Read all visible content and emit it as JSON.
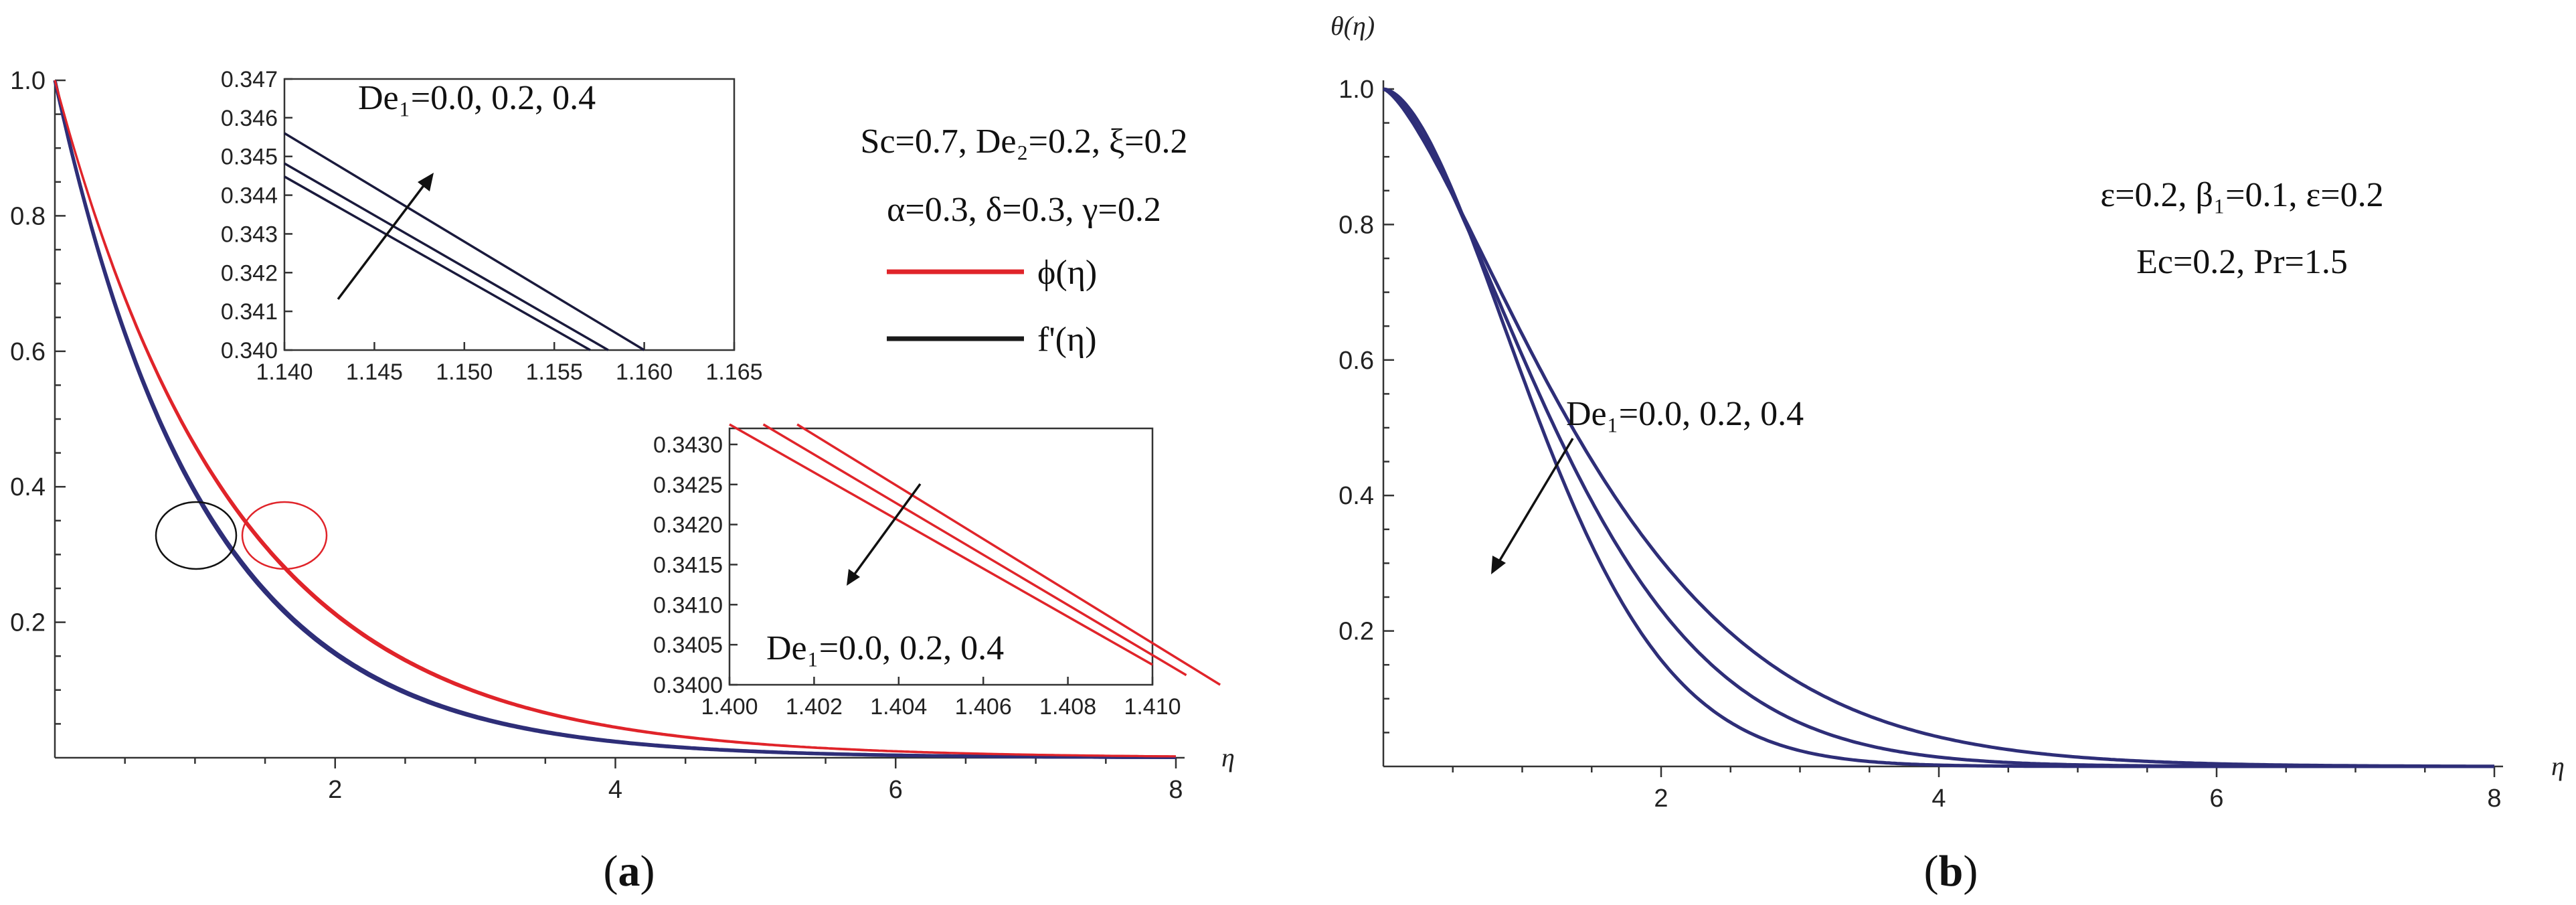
{
  "chart_data": [
    {
      "panel": "a",
      "type": "line",
      "panel_label_parts": [
        "(",
        "a",
        ")"
      ],
      "xlabel": "η",
      "ylabel": "",
      "xlim": [
        0,
        8
      ],
      "ylim": [
        0,
        1.0
      ],
      "x_ticks": [
        2,
        4,
        6,
        8
      ],
      "x_tick_labels": [
        "2",
        "4",
        "6",
        "8"
      ],
      "y_ticks": [
        0.2,
        0.4,
        0.6,
        0.8,
        1.0
      ],
      "y_tick_labels": [
        "0.2",
        "0.4",
        "0.6",
        "0.8",
        "1.0"
      ],
      "parameters_line1": "Sc=0.7, De₂=0.2, ξ=0.2",
      "parameters_line2": "α=0.3, δ=0.3, γ=0.2",
      "legend": [
        {
          "label": "ϕ(η)",
          "color": "#e0242a"
        },
        {
          "label": "f'(η)",
          "color": "#1a1a1a"
        }
      ],
      "series": [
        {
          "name": "f'(η), De1=0.0",
          "color": "#2e2e78",
          "decay": 0.94
        },
        {
          "name": "f'(η), De1=0.2",
          "color": "#2e2e78",
          "decay": 0.935
        },
        {
          "name": "f'(η), De1=0.4",
          "color": "#2e2e78",
          "decay": 0.93
        },
        {
          "name": "ϕ(η), De1=0.0",
          "color": "#e0242a",
          "decay": 0.78
        },
        {
          "name": "ϕ(η), De1=0.2",
          "color": "#e0242a",
          "decay": 0.775
        },
        {
          "name": "ϕ(η), De1=0.4",
          "color": "#e0242a",
          "decay": 0.77
        }
      ],
      "insets": [
        {
          "xlim": [
            1.14,
            1.165
          ],
          "ylim": [
            0.34,
            0.347
          ],
          "x_tick_labels": [
            "1.140",
            "1.145",
            "1.150",
            "1.155",
            "1.160",
            "1.165"
          ],
          "y_tick_labels": [
            "0.340",
            "0.341",
            "0.342",
            "0.343",
            "0.344",
            "0.345",
            "0.346",
            "0.347"
          ],
          "annotation": "De₁=0.0, 0.2, 0.4",
          "color": "#1a1a3c",
          "lines": [
            {
              "x1": 1.14,
              "y1": 0.34448,
              "x2": 1.157,
              "y2": 0.34
            },
            {
              "x1": 1.14,
              "y1": 0.34482,
              "x2": 1.158,
              "y2": 0.34
            },
            {
              "x1": 1.14,
              "y1": 0.3456,
              "x2": 1.16,
              "y2": 0.34
            }
          ]
        },
        {
          "xlim": [
            1.4,
            1.41
          ],
          "ylim": [
            0.34,
            0.3432
          ],
          "x_tick_labels": [
            "1.400",
            "1.402",
            "1.404",
            "1.406",
            "1.408",
            "1.410"
          ],
          "y_tick_labels": [
            "0.3400",
            "0.3405",
            "0.3410",
            "0.3415",
            "0.3420",
            "0.3425",
            "0.3430"
          ],
          "annotation": "De₁=0.0, 0.2, 0.4",
          "color": "#e0242a",
          "lines": [
            {
              "x1": 1.4,
              "y1": 0.34325,
              "x2": 1.41,
              "y2": 0.34025
            },
            {
              "x1": 1.4008,
              "y1": 0.34325,
              "x2": 1.4108,
              "y2": 0.34012
            },
            {
              "x1": 1.4016,
              "y1": 0.34325,
              "x2": 1.4116,
              "y2": 0.34
            }
          ]
        }
      ]
    },
    {
      "panel": "b",
      "type": "line",
      "panel_label_parts": [
        "(",
        "b",
        ")"
      ],
      "xlabel": "η",
      "ylabel": "θ(η)",
      "xlim": [
        0,
        8
      ],
      "ylim": [
        0,
        1.0
      ],
      "x_ticks": [
        2,
        4,
        6,
        8
      ],
      "x_tick_labels": [
        "2",
        "4",
        "6",
        "8"
      ],
      "y_ticks": [
        0.2,
        0.4,
        0.6,
        0.8,
        1.0
      ],
      "y_tick_labels": [
        "0.2",
        "0.4",
        "0.6",
        "0.8",
        "1.0"
      ],
      "parameters_line1": "ε=0.2, β₁=0.1, ε=0.2",
      "parameters_line2": "Ec=0.2, Pr=1.5",
      "annotation": "De₁=0.0, 0.2, 0.4",
      "series": [
        {
          "name": "θ(η), De1=0.0",
          "color": "#2e2e78",
          "k": 0.55,
          "p": 1.75
        },
        {
          "name": "θ(η), De1=0.2",
          "color": "#2e2e78",
          "k": 0.5,
          "p": 1.55
        },
        {
          "name": "θ(η), De1=0.4",
          "color": "#2e2e78",
          "k": 0.45,
          "p": 1.4
        }
      ]
    }
  ]
}
